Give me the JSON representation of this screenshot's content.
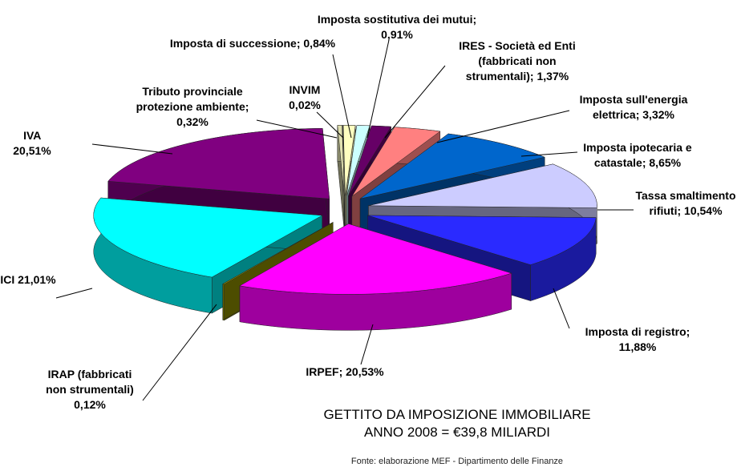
{
  "chart_data": {
    "type": "pie3d",
    "title": "GETTITO DA IMPOSIZIONE IMMOBILIARE",
    "subtitle": "ANNO 2008 = €39,8 MILIARDI",
    "source": "Fonte: elaborazione MEF - Dipartimento delle Finanze",
    "categories": [
      "Tributo provinciale protezione ambiente;",
      "INVIM",
      "Imposta di successione;",
      "Imposta sostitutiva dei mutui;",
      "IRES - Società ed Enti (fabbricati non strumentali);",
      "Imposta sull'energia elettrica;",
      "Imposta ipotecaria e catastale;",
      "Tassa smaltimento rifiuti;",
      "Imposta di registro;",
      "IRPEF;",
      "IRAP (fabbricati non strumentali)",
      "ICI",
      "IVA"
    ],
    "values": [
      0.32,
      0.02,
      0.84,
      0.91,
      1.37,
      3.32,
      8.65,
      10.54,
      11.88,
      20.53,
      0.12,
      21.01,
      20.51
    ],
    "value_labels": [
      "0,32%",
      "0,02%",
      "0,84%",
      "0,91%",
      "1,37%",
      "3,32%",
      "8,65%",
      "10,54%",
      "11,88%",
      "20,53%",
      "0,12%",
      "21,01%",
      "20,51%"
    ],
    "colors": [
      "#e0e0b0",
      "#ffffff",
      "#ffffc0",
      "#ccffff",
      "#660066",
      "#ff8080",
      "#0066cc",
      "#ccccff",
      "#2a2aff",
      "#ff00ff",
      "#999900",
      "#00ffff",
      "#800080"
    ]
  }
}
